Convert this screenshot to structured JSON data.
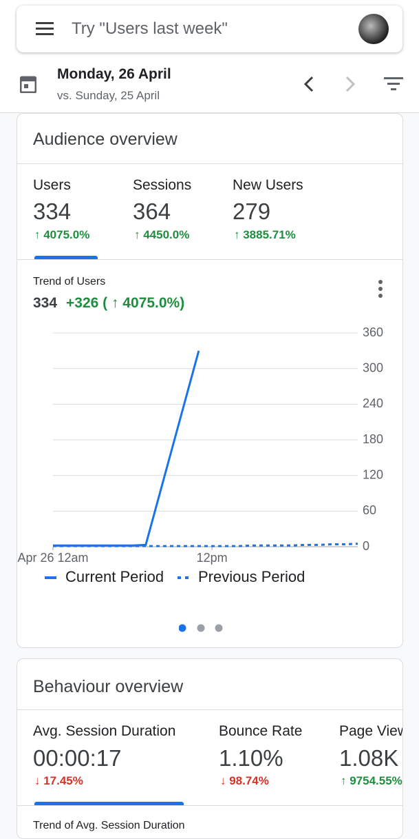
{
  "search": {
    "placeholder": "Try \"Users last week\""
  },
  "date": {
    "current": "Monday, 26 April",
    "compare": "vs. Sunday, 25 April"
  },
  "audience": {
    "title": "Audience overview",
    "metrics": [
      {
        "label": "Users",
        "value": "334",
        "change": "↑ 4075.0%"
      },
      {
        "label": "Sessions",
        "value": "364",
        "change": "↑ 4450.0%"
      },
      {
        "label": "New Users",
        "value": "279",
        "change": "↑ 3885.71%"
      }
    ]
  },
  "chart_data": {
    "type": "line",
    "title": "Trend of Users",
    "summary_value": "334",
    "summary_change": "+326 ( ↑ 4075.0%)",
    "xlim": [
      0,
      23
    ],
    "xticks": [
      {
        "value": 0,
        "label": "Apr 26 12am"
      },
      {
        "value": 12,
        "label": "12pm"
      }
    ],
    "ylim": [
      0,
      360
    ],
    "yticks": [
      0,
      60,
      120,
      180,
      240,
      300,
      360
    ],
    "grid": true,
    "series": [
      {
        "name": "Current Period",
        "color": "#1a73e8",
        "dash": false,
        "x": [
          0,
          1,
          2,
          3,
          4,
          5,
          6,
          7,
          11
        ],
        "values": [
          2,
          2,
          2,
          2,
          2,
          2,
          2,
          3,
          330
        ]
      },
      {
        "name": "Previous Period",
        "color": "#1a73e8",
        "dash": true,
        "x": [
          0,
          1,
          2,
          3,
          4,
          5,
          6,
          7,
          8,
          9,
          10,
          11,
          12,
          13,
          14,
          15,
          16,
          17,
          18,
          19,
          20,
          21,
          22,
          23
        ],
        "values": [
          1,
          1,
          1,
          1,
          1,
          1,
          1,
          1,
          1,
          1,
          1,
          1,
          1,
          1,
          1,
          2,
          2,
          2,
          2,
          3,
          3,
          4,
          4,
          5
        ]
      }
    ]
  },
  "behaviour": {
    "title": "Behaviour overview",
    "metrics": [
      {
        "label": "Avg. Session Duration",
        "value": "00:00:17",
        "change": "↓ 17.45%",
        "direction": "down"
      },
      {
        "label": "Bounce Rate",
        "value": "1.10%",
        "change": "↓ 98.74%",
        "direction": "down"
      },
      {
        "label": "Page Views",
        "value": "1.08K",
        "change": "↑ 9754.55%",
        "direction": "up"
      }
    ],
    "next_chart_title": "Trend of Avg. Session Duration"
  }
}
